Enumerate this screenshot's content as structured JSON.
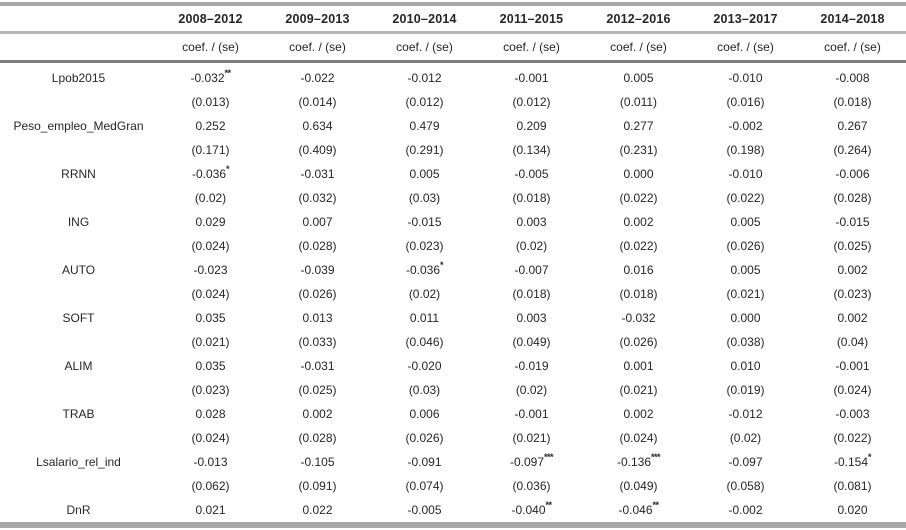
{
  "table": {
    "columns": [
      "2008–2012",
      "2009–2013",
      "2010–2014",
      "2011–2015",
      "2012–2016",
      "2013–2017",
      "2014–2018"
    ],
    "subheader_label": "coef. / (se)",
    "rows": [
      {
        "label": "Lpob2015",
        "coef": [
          "-0.032**",
          "-0.022",
          "-0.012",
          "-0.001",
          "0.005",
          "-0.010",
          "-0.008"
        ],
        "se": [
          "(0.013)",
          "(0.014)",
          "(0.012)",
          "(0.012)",
          "(0.011)",
          "(0.016)",
          "(0.018)"
        ]
      },
      {
        "label": "Peso_empleo_MedGran",
        "coef": [
          "0.252",
          "0.634",
          "0.479",
          "0.209",
          "0.277",
          "-0.002",
          "0.267"
        ],
        "se": [
          "(0.171)",
          "(0.409)",
          "(0.291)",
          "(0.134)",
          "(0.231)",
          "(0.198)",
          "(0.264)"
        ]
      },
      {
        "label": "RRNN",
        "coef": [
          "-0.036*",
          "-0.031",
          "0.005",
          "-0.005",
          "0.000",
          "-0.010",
          "-0.006"
        ],
        "se": [
          "(0.02)",
          "(0.032)",
          "(0.03)",
          "(0.018)",
          "(0.022)",
          "(0.022)",
          "(0.028)"
        ]
      },
      {
        "label": "ING",
        "coef": [
          "0.029",
          "0.007",
          "-0.015",
          "0.003",
          "0.002",
          "0.005",
          "-0.015"
        ],
        "se": [
          "(0.024)",
          "(0.028)",
          "(0.023)",
          "(0.02)",
          "(0.022)",
          "(0.026)",
          "(0.025)"
        ]
      },
      {
        "label": "AUTO",
        "coef": [
          "-0.023",
          "-0.039",
          "-0.036*",
          "-0.007",
          "0.016",
          "0.005",
          "0.002"
        ],
        "se": [
          "(0.024)",
          "(0.026)",
          "(0.02)",
          "(0.018)",
          "(0.018)",
          "(0.021)",
          "(0.023)"
        ]
      },
      {
        "label": "SOFT",
        "coef": [
          "0.035",
          "0.013",
          "0.011",
          "0.003",
          "-0.032",
          "0.000",
          "0.002"
        ],
        "se": [
          "(0.021)",
          "(0.033)",
          "(0.046)",
          "(0.049)",
          "(0.026)",
          "(0.038)",
          "(0.04)"
        ]
      },
      {
        "label": "ALIM",
        "coef": [
          "0.035",
          "-0.031",
          "-0.020",
          "-0.019",
          "0.001",
          "0.010",
          "-0.001"
        ],
        "se": [
          "(0.023)",
          "(0.025)",
          "(0.03)",
          "(0.02)",
          "(0.021)",
          "(0.019)",
          "(0.024)"
        ]
      },
      {
        "label": "TRAB",
        "coef": [
          "0.028",
          "0.002",
          "0.006",
          "-0.001",
          "0.002",
          "-0.012",
          "-0.003"
        ],
        "se": [
          "(0.024)",
          "(0.028)",
          "(0.026)",
          "(0.021)",
          "(0.024)",
          "(0.02)",
          "(0.022)"
        ]
      },
      {
        "label": "Lsalario_rel_ind",
        "coef": [
          "-0.013",
          "-0.105",
          "-0.091",
          "-0.097***",
          "-0.136***",
          "-0.097",
          "-0.154*"
        ],
        "se": [
          "(0.062)",
          "(0.091)",
          "(0.074)",
          "(0.036)",
          "(0.049)",
          "(0.058)",
          "(0.081)"
        ]
      },
      {
        "label": "DnR",
        "coef": [
          "0.021",
          "0.022",
          "-0.005",
          "-0.040**",
          "-0.046**",
          "-0.002",
          "0.020"
        ],
        "se": null
      }
    ],
    "colors": {
      "text": "#262626",
      "rule_medium": "#a8a8a8",
      "rule_light": "#b6b6b6",
      "rule_dark": "#7d7d7d"
    }
  }
}
